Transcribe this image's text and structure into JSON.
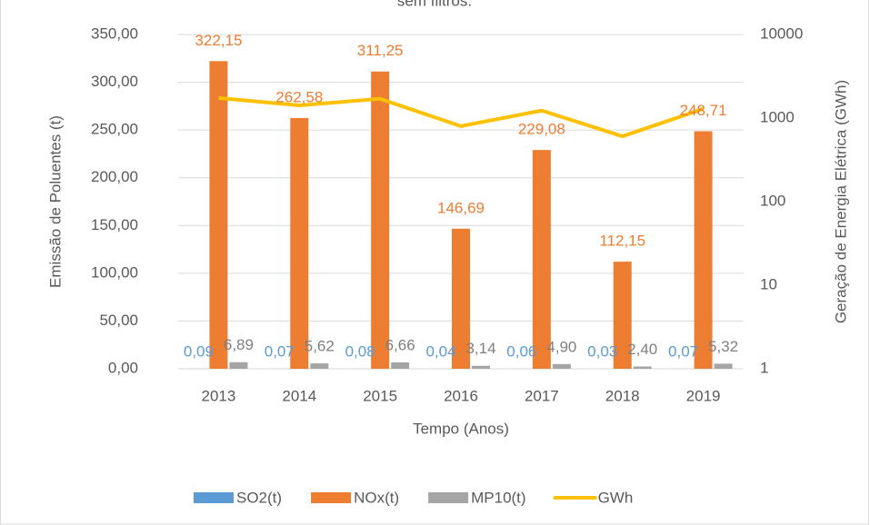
{
  "chart_data": {
    "type": "bar",
    "title": "sem filtros.",
    "categories": [
      "2013",
      "2014",
      "2015",
      "2016",
      "2017",
      "2018",
      "2019"
    ],
    "series": [
      {
        "name": "SO2(t)",
        "color": "#5b9bd5",
        "values": [
          0.09,
          0.07,
          0.08,
          0.04,
          0.06,
          0.03,
          0.07
        ],
        "value_labels": [
          "0,09",
          "0,07",
          "0,08",
          "0,04",
          "0,06",
          "0,03",
          "0,07"
        ]
      },
      {
        "name": "NOx(t)",
        "color": "#ed7d31",
        "values": [
          322.15,
          262.58,
          311.25,
          146.69,
          229.08,
          112.15,
          248.71
        ],
        "value_labels": [
          "322,15",
          "262,58",
          "311,25",
          "146,69",
          "229,08",
          "112,15",
          "248,71"
        ]
      },
      {
        "name": "MP10(t)",
        "color": "#a5a5a5",
        "values": [
          6.89,
          5.62,
          6.66,
          3.14,
          4.9,
          2.4,
          5.32
        ],
        "value_labels": [
          "6,89",
          "5,62",
          "6,66",
          "3,14",
          "4,90",
          "2,40",
          "5,32"
        ]
      },
      {
        "name": "GWh",
        "color": "#ffc000",
        "axis": "y2",
        "type": "line",
        "values": [
          1740,
          1420,
          1700,
          800,
          1230,
          605,
          1290
        ]
      }
    ],
    "ylim": [
      0,
      350
    ],
    "yticks": [
      {
        "value": 0,
        "label": "0,00"
      },
      {
        "value": 50,
        "label": "50,00"
      },
      {
        "value": 100,
        "label": "100,00"
      },
      {
        "value": 150,
        "label": "150,00"
      },
      {
        "value": 200,
        "label": "200,00"
      },
      {
        "value": 250,
        "label": "250,00"
      },
      {
        "value": 300,
        "label": "300,00"
      },
      {
        "value": 350,
        "label": "350,00"
      }
    ],
    "y2lim": [
      1,
      10000
    ],
    "y2ticks": [
      1,
      10,
      100,
      1000,
      10000
    ],
    "y2log": true,
    "grid": true,
    "xlabel": "Tempo (Anos)",
    "ylabel": "Emissão de Poluentes (t)",
    "y2label": "Geração de  Energia Elétrica (GWh)",
    "legend": "bottom"
  }
}
